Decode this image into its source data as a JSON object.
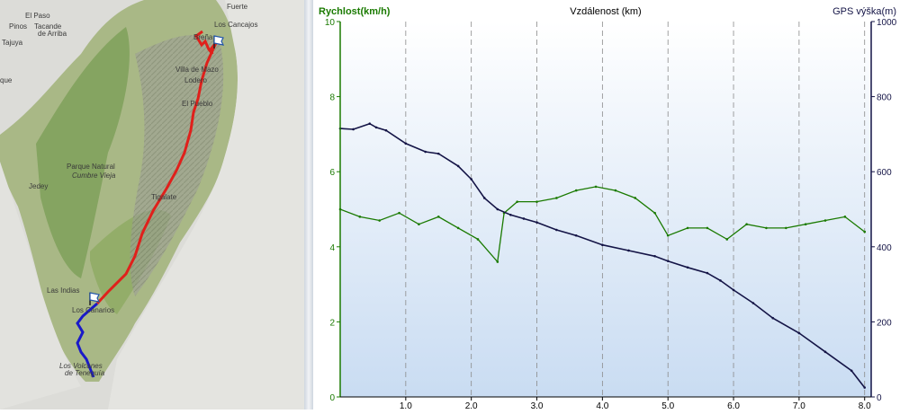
{
  "map": {
    "labels": [
      {
        "id": "el-paso",
        "text": "El Paso"
      },
      {
        "id": "pinos",
        "text": "Pinos"
      },
      {
        "id": "tacande",
        "text": "Tacande"
      },
      {
        "id": "de-arriba",
        "text": "de Arriba"
      },
      {
        "id": "tajuya",
        "text": "Tajuya"
      },
      {
        "id": "que",
        "text": "que"
      },
      {
        "id": "breña",
        "text": "Breña"
      },
      {
        "id": "los-cancajos",
        "text": "Los Cancajos"
      },
      {
        "id": "fuerte",
        "text": "Fuerte"
      },
      {
        "id": "villa-de-mazo",
        "text": "Villa de Mazo"
      },
      {
        "id": "lodero",
        "text": "Lodero"
      },
      {
        "id": "el-pueblo",
        "text": "El Pueblo"
      },
      {
        "id": "parque-natural",
        "text": "Parque Natural"
      },
      {
        "id": "cumbre-vieja",
        "text": "Cumbre Vieja"
      },
      {
        "id": "tigalate",
        "text": "Tigalate"
      },
      {
        "id": "jedey",
        "text": "Jedey"
      },
      {
        "id": "las-indias",
        "text": "Las Indias"
      },
      {
        "id": "los-canarios",
        "text": "Los Canarios"
      },
      {
        "id": "los-volcanes",
        "text": "Los Volcanes"
      },
      {
        "id": "de-teneguia",
        "text": "de Teneguía"
      }
    ],
    "route_colors": {
      "main": "#e0201b",
      "end": "#1a1ac8"
    }
  },
  "chart_data": {
    "type": "line",
    "title": "Vzdálenost (km)",
    "xlabel": "Vzdálenost (km)",
    "ylabel_left": "Rychlost(km/h)",
    "ylabel_right": "GPS výška(m)",
    "xlim": [
      0,
      8.1
    ],
    "ylim_left": [
      0,
      10
    ],
    "ylim_right": [
      0,
      1000
    ],
    "x_ticks": [
      "1.0",
      "2.0",
      "3.0",
      "4.0",
      "5.0",
      "6.0",
      "7.0",
      "8.0"
    ],
    "y_ticks_left": [
      "0",
      "2",
      "4",
      "6",
      "8",
      "10"
    ],
    "y_ticks_right": [
      "0",
      "200",
      "400",
      "600",
      "800",
      "1000"
    ],
    "grid": "vertical dashed",
    "series": [
      {
        "name": "Rychlost(km/h)",
        "axis": "left",
        "color": "#1a7a00",
        "x": [
          0.0,
          0.3,
          0.6,
          0.9,
          1.2,
          1.5,
          1.8,
          2.1,
          2.4,
          2.5,
          2.7,
          3.0,
          3.3,
          3.6,
          3.9,
          4.2,
          4.5,
          4.8,
          5.0,
          5.3,
          5.6,
          5.9,
          6.2,
          6.5,
          6.8,
          7.1,
          7.4,
          7.7,
          8.0
        ],
        "values": [
          5.0,
          4.8,
          4.7,
          4.9,
          4.6,
          4.8,
          4.5,
          4.2,
          3.6,
          4.9,
          5.2,
          5.2,
          5.3,
          5.5,
          5.6,
          5.5,
          5.3,
          4.9,
          4.3,
          4.5,
          4.5,
          4.2,
          4.6,
          4.5,
          4.5,
          4.6,
          4.7,
          4.8,
          4.4
        ]
      },
      {
        "name": "GPS výška(m)",
        "axis": "right",
        "color": "#141446",
        "x": [
          0.0,
          0.2,
          0.45,
          0.55,
          0.7,
          1.0,
          1.3,
          1.5,
          1.8,
          2.0,
          2.2,
          2.4,
          2.6,
          2.8,
          3.0,
          3.3,
          3.6,
          4.0,
          4.4,
          4.8,
          5.0,
          5.3,
          5.6,
          5.8,
          6.0,
          6.3,
          6.6,
          7.0,
          7.4,
          7.8,
          8.0
        ],
        "values": [
          715,
          713,
          728,
          718,
          710,
          675,
          653,
          648,
          615,
          580,
          530,
          500,
          485,
          475,
          465,
          445,
          430,
          405,
          390,
          375,
          362,
          345,
          330,
          310,
          285,
          250,
          210,
          170,
          120,
          70,
          25
        ]
      }
    ]
  }
}
